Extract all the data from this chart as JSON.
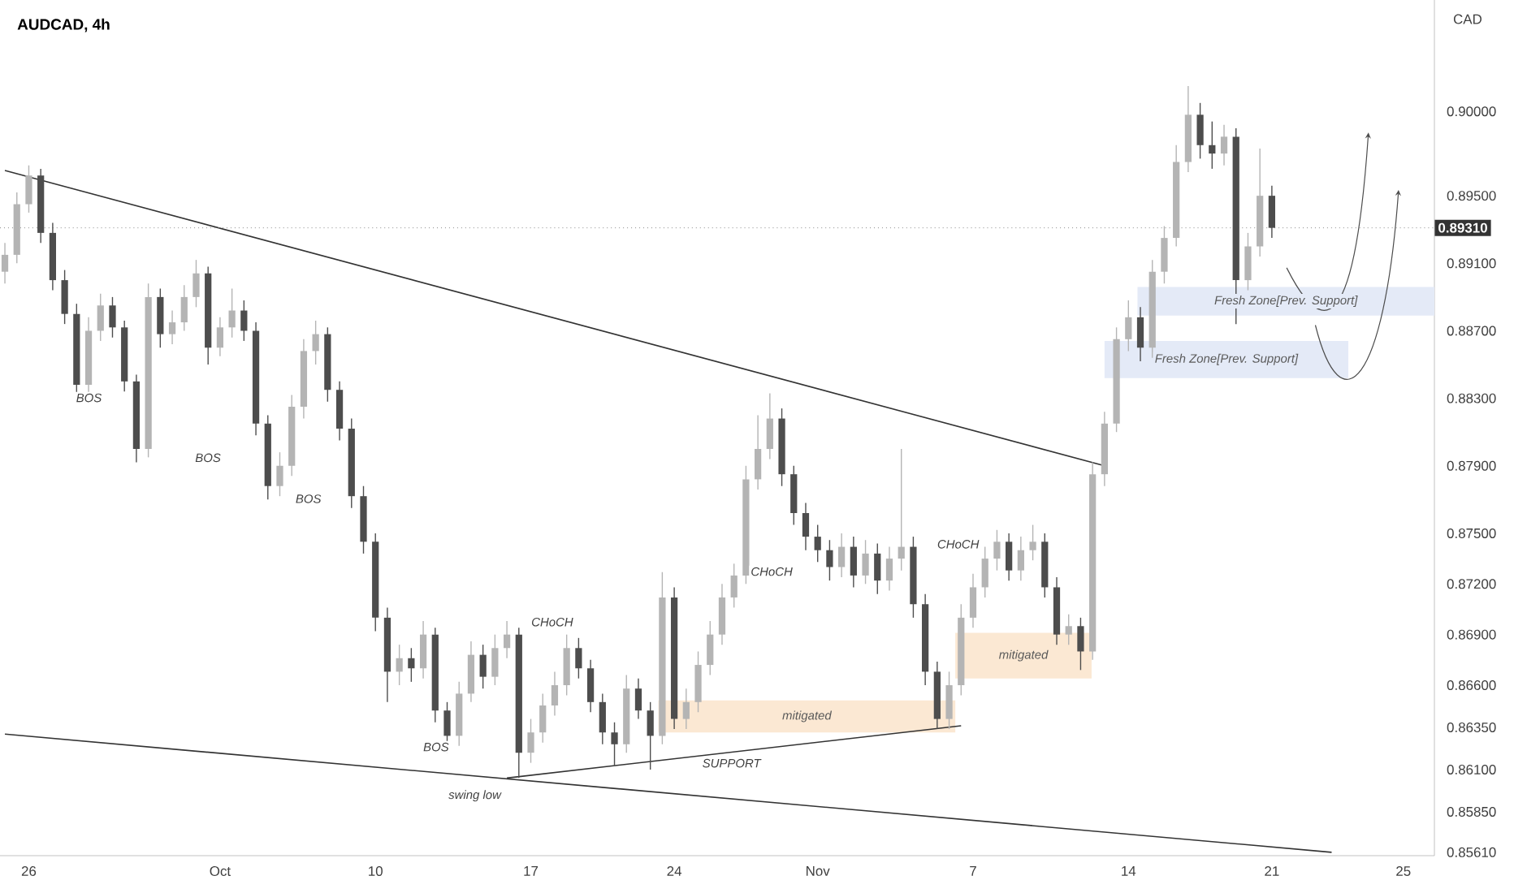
{
  "chart_data": {
    "type": "candlestick",
    "title": "AUDCAD, 4h",
    "ylabel": "CAD",
    "ylim": [
      0.8559,
      0.9066
    ],
    "yticks": [
      {
        "value": 0.9,
        "label": "0.90000"
      },
      {
        "value": 0.895,
        "label": "0.89500"
      },
      {
        "value": 0.891,
        "label": "0.89100"
      },
      {
        "value": 0.887,
        "label": "0.88700"
      },
      {
        "value": 0.883,
        "label": "0.88300"
      },
      {
        "value": 0.879,
        "label": "0.87900"
      },
      {
        "value": 0.875,
        "label": "0.87500"
      },
      {
        "value": 0.872,
        "label": "0.87200"
      },
      {
        "value": 0.869,
        "label": "0.86900"
      },
      {
        "value": 0.866,
        "label": "0.86600"
      },
      {
        "value": 0.8635,
        "label": "0.86350"
      },
      {
        "value": 0.861,
        "label": "0.86100"
      },
      {
        "value": 0.8585,
        "label": "0.85850"
      },
      {
        "value": 0.8561,
        "label": "0.85610"
      }
    ],
    "categories": [
      null,
      null,
      "26",
      null,
      null,
      null,
      null,
      null,
      null,
      null,
      null,
      null,
      null,
      null,
      null,
      null,
      null,
      null,
      "Oct",
      null,
      null,
      null,
      null,
      null,
      null,
      null,
      null,
      null,
      null,
      null,
      null,
      "10",
      null,
      null,
      null,
      null,
      null,
      null,
      null,
      null,
      null,
      null,
      null,
      null,
      "17",
      null,
      null,
      null,
      null,
      null,
      null,
      null,
      null,
      null,
      null,
      null,
      "24",
      null,
      null,
      null,
      null,
      null,
      null,
      null,
      null,
      null,
      null,
      null,
      "Nov",
      null,
      null,
      null,
      null,
      null,
      null,
      null,
      null,
      null,
      null,
      null,
      null,
      "7",
      null,
      null,
      null,
      null,
      null,
      null,
      null,
      null,
      null,
      null,
      null,
      null,
      "14",
      null,
      null,
      null,
      null,
      null,
      null,
      null,
      null,
      null,
      null,
      null,
      "21",
      null,
      null,
      null,
      null,
      null,
      null,
      null,
      null,
      null,
      null,
      "25"
    ],
    "ohlc": [
      [
        0.8905,
        0.8922,
        0.8898,
        0.8915
      ],
      [
        0.8915,
        0.8952,
        0.891,
        0.8945
      ],
      [
        0.8945,
        0.8968,
        0.894,
        0.8962
      ],
      [
        0.8962,
        0.8966,
        0.8922,
        0.8928
      ],
      [
        0.8928,
        0.8934,
        0.8894,
        0.89
      ],
      [
        0.89,
        0.8906,
        0.8874,
        0.888
      ],
      [
        0.888,
        0.8886,
        0.883,
        0.8838
      ],
      [
        0.8838,
        0.8878,
        0.8832,
        0.887
      ],
      [
        0.887,
        0.8892,
        0.8864,
        0.8885
      ],
      [
        0.8885,
        0.889,
        0.8866,
        0.8872
      ],
      [
        0.8872,
        0.8876,
        0.8834,
        0.884
      ],
      [
        0.884,
        0.8844,
        0.8792,
        0.88
      ],
      [
        0.88,
        0.8898,
        0.8795,
        0.889
      ],
      [
        0.889,
        0.8895,
        0.886,
        0.8868
      ],
      [
        0.8868,
        0.8882,
        0.8862,
        0.8875
      ],
      [
        0.8875,
        0.8897,
        0.887,
        0.889
      ],
      [
        0.889,
        0.8912,
        0.8884,
        0.8904
      ],
      [
        0.8904,
        0.8908,
        0.885,
        0.886
      ],
      [
        0.886,
        0.8878,
        0.8855,
        0.8872
      ],
      [
        0.8872,
        0.8895,
        0.8866,
        0.8882
      ],
      [
        0.8882,
        0.8888,
        0.8864,
        0.887
      ],
      [
        0.887,
        0.8875,
        0.8808,
        0.8815
      ],
      [
        0.8815,
        0.882,
        0.877,
        0.8778
      ],
      [
        0.8778,
        0.8798,
        0.8772,
        0.879
      ],
      [
        0.879,
        0.8832,
        0.8784,
        0.8825
      ],
      [
        0.8825,
        0.8865,
        0.8818,
        0.8858
      ],
      [
        0.8858,
        0.8876,
        0.885,
        0.8868
      ],
      [
        0.8868,
        0.8872,
        0.8828,
        0.8835
      ],
      [
        0.8835,
        0.884,
        0.8805,
        0.8812
      ],
      [
        0.8812,
        0.8818,
        0.8765,
        0.8772
      ],
      [
        0.8772,
        0.8778,
        0.8738,
        0.8745
      ],
      [
        0.8745,
        0.875,
        0.8692,
        0.87
      ],
      [
        0.87,
        0.8706,
        0.865,
        0.8668
      ],
      [
        0.8668,
        0.8684,
        0.866,
        0.8676
      ],
      [
        0.8676,
        0.8682,
        0.8662,
        0.867
      ],
      [
        0.867,
        0.8698,
        0.8664,
        0.869
      ],
      [
        0.869,
        0.8694,
        0.8638,
        0.8645
      ],
      [
        0.8645,
        0.865,
        0.862,
        0.863
      ],
      [
        0.863,
        0.8662,
        0.8624,
        0.8655
      ],
      [
        0.8655,
        0.8686,
        0.865,
        0.8678
      ],
      [
        0.8678,
        0.8684,
        0.8658,
        0.8665
      ],
      [
        0.8665,
        0.869,
        0.866,
        0.8682
      ],
      [
        0.8682,
        0.8698,
        0.8676,
        0.869
      ],
      [
        0.869,
        0.8694,
        0.8605,
        0.862
      ],
      [
        0.862,
        0.864,
        0.8614,
        0.8632
      ],
      [
        0.8632,
        0.8655,
        0.8626,
        0.8648
      ],
      [
        0.8648,
        0.8668,
        0.8642,
        0.866
      ],
      [
        0.866,
        0.869,
        0.8654,
        0.8682
      ],
      [
        0.8682,
        0.8688,
        0.8664,
        0.867
      ],
      [
        0.867,
        0.8675,
        0.8644,
        0.865
      ],
      [
        0.865,
        0.8655,
        0.8625,
        0.8632
      ],
      [
        0.8632,
        0.8638,
        0.8612,
        0.8625
      ],
      [
        0.8625,
        0.8666,
        0.862,
        0.8658
      ],
      [
        0.8658,
        0.8664,
        0.864,
        0.8645
      ],
      [
        0.8645,
        0.865,
        0.861,
        0.863
      ],
      [
        0.863,
        0.8727,
        0.8625,
        0.8712
      ],
      [
        0.8712,
        0.8718,
        0.8634,
        0.864
      ],
      [
        0.864,
        0.8658,
        0.8634,
        0.865
      ],
      [
        0.865,
        0.868,
        0.8644,
        0.8672
      ],
      [
        0.8672,
        0.8698,
        0.8666,
        0.869
      ],
      [
        0.869,
        0.872,
        0.8684,
        0.8712
      ],
      [
        0.8712,
        0.8732,
        0.8706,
        0.8725
      ],
      [
        0.8725,
        0.879,
        0.872,
        0.8782
      ],
      [
        0.8782,
        0.882,
        0.8776,
        0.88
      ],
      [
        0.88,
        0.8833,
        0.8794,
        0.8818
      ],
      [
        0.8818,
        0.8824,
        0.8778,
        0.8785
      ],
      [
        0.8785,
        0.879,
        0.8755,
        0.8762
      ],
      [
        0.8762,
        0.8768,
        0.874,
        0.8748
      ],
      [
        0.8748,
        0.8755,
        0.8733,
        0.874
      ],
      [
        0.874,
        0.8746,
        0.8722,
        0.873
      ],
      [
        0.873,
        0.875,
        0.8724,
        0.8742
      ],
      [
        0.8742,
        0.8748,
        0.8718,
        0.8725
      ],
      [
        0.8725,
        0.8746,
        0.872,
        0.8738
      ],
      [
        0.8738,
        0.8744,
        0.8714,
        0.8722
      ],
      [
        0.8722,
        0.8742,
        0.8716,
        0.8735
      ],
      [
        0.8735,
        0.88,
        0.8728,
        0.8742
      ],
      [
        0.8742,
        0.8748,
        0.87,
        0.8708
      ],
      [
        0.8708,
        0.8714,
        0.866,
        0.8668
      ],
      [
        0.8668,
        0.8674,
        0.8634,
        0.864
      ],
      [
        0.864,
        0.8668,
        0.8634,
        0.866
      ],
      [
        0.866,
        0.8708,
        0.8654,
        0.87
      ],
      [
        0.87,
        0.8726,
        0.8694,
        0.8718
      ],
      [
        0.8718,
        0.8742,
        0.8712,
        0.8735
      ],
      [
        0.8735,
        0.8752,
        0.8728,
        0.8745
      ],
      [
        0.8745,
        0.875,
        0.8722,
        0.8728
      ],
      [
        0.8728,
        0.8748,
        0.8722,
        0.874
      ],
      [
        0.874,
        0.8755,
        0.8734,
        0.8745
      ],
      [
        0.8745,
        0.875,
        0.8712,
        0.8718
      ],
      [
        0.8718,
        0.8724,
        0.8684,
        0.869
      ],
      [
        0.869,
        0.8702,
        0.8684,
        0.8695
      ],
      [
        0.8695,
        0.87,
        0.8669,
        0.868
      ],
      [
        0.868,
        0.8792,
        0.8675,
        0.8785
      ],
      [
        0.8785,
        0.8822,
        0.8778,
        0.8815
      ],
      [
        0.8815,
        0.8872,
        0.881,
        0.8865
      ],
      [
        0.8865,
        0.8888,
        0.8858,
        0.8878
      ],
      [
        0.8878,
        0.8884,
        0.8852,
        0.886
      ],
      [
        0.886,
        0.8912,
        0.8854,
        0.8905
      ],
      [
        0.8905,
        0.8932,
        0.8898,
        0.8925
      ],
      [
        0.8925,
        0.898,
        0.892,
        0.897
      ],
      [
        0.897,
        0.9015,
        0.8964,
        0.8998
      ],
      [
        0.8998,
        0.9005,
        0.8972,
        0.898
      ],
      [
        0.898,
        0.8994,
        0.8966,
        0.8975
      ],
      [
        0.8975,
        0.8992,
        0.8968,
        0.8985
      ],
      [
        0.8985,
        0.899,
        0.8874,
        0.89
      ],
      [
        0.89,
        0.8928,
        0.8894,
        0.892
      ],
      [
        0.892,
        0.8978,
        0.8914,
        0.895
      ],
      [
        0.895,
        0.8956,
        0.8925,
        0.8931
      ],
      null,
      null,
      null,
      null,
      null,
      null,
      null,
      null,
      null,
      null,
      null
    ],
    "series": [
      {
        "type": "line",
        "color": "#333333",
        "values": [
          0.8965,
          null,
          null,
          null,
          null,
          null,
          null,
          null,
          null,
          null,
          null,
          null,
          null,
          null,
          null,
          null,
          null,
          null,
          null,
          null,
          null,
          null,
          null,
          null,
          null,
          null,
          null,
          null,
          null,
          null,
          null,
          null,
          null,
          null,
          null,
          null,
          null,
          null,
          null,
          null,
          null,
          null,
          null,
          null,
          null,
          null,
          null,
          null,
          null,
          null,
          null,
          null,
          null,
          null,
          null,
          null,
          null,
          null,
          null,
          null,
          null,
          null,
          null,
          null,
          null,
          null,
          null,
          null,
          null,
          null,
          null,
          null,
          null,
          null,
          null,
          null,
          null,
          null,
          null,
          null,
          null,
          null,
          null,
          null,
          null,
          null,
          null,
          null,
          null,
          null,
          null,
          null,
          0.879,
          null,
          null,
          null,
          null,
          null,
          null,
          null,
          null,
          null,
          null,
          null,
          null,
          null,
          null,
          null,
          null,
          null,
          null,
          null,
          null,
          null,
          null,
          null,
          null,
          null
        ]
      },
      {
        "type": "line",
        "color": "#333333",
        "values": [
          0.8631,
          null,
          null,
          null,
          null,
          null,
          null,
          null,
          null,
          null,
          null,
          null,
          null,
          null,
          null,
          null,
          null,
          null,
          null,
          null,
          null,
          null,
          null,
          null,
          null,
          null,
          null,
          null,
          null,
          null,
          null,
          null,
          null,
          null,
          null,
          null,
          null,
          null,
          null,
          null,
          null,
          null,
          null,
          null,
          null,
          null,
          null,
          null,
          null,
          null,
          null,
          null,
          null,
          null,
          null,
          null,
          null,
          null,
          null,
          null,
          null,
          null,
          null,
          null,
          null,
          null,
          null,
          null,
          null,
          null,
          null,
          null,
          null,
          null,
          null,
          null,
          null,
          null,
          null,
          null,
          null,
          null,
          null,
          null,
          null,
          null,
          null,
          null,
          null,
          null,
          null,
          null,
          null,
          null,
          null,
          null,
          null,
          null,
          null,
          null,
          null,
          null,
          null,
          null,
          null,
          null,
          null,
          null,
          null,
          null,
          null,
          0.8561,
          null,
          null,
          null,
          null,
          null,
          null
        ]
      },
      {
        "type": "line",
        "color": "#333333",
        "values": [
          null,
          null,
          null,
          null,
          null,
          null,
          null,
          null,
          null,
          null,
          null,
          null,
          null,
          null,
          null,
          null,
          null,
          null,
          null,
          null,
          null,
          null,
          null,
          null,
          null,
          null,
          null,
          null,
          null,
          null,
          null,
          null,
          null,
          null,
          null,
          null,
          null,
          null,
          null,
          null,
          null,
          null,
          0.8605,
          null,
          null,
          null,
          null,
          null,
          null,
          null,
          null,
          null,
          null,
          null,
          null,
          null,
          null,
          null,
          null,
          null,
          null,
          null,
          null,
          null,
          null,
          null,
          null,
          null,
          null,
          null,
          null,
          null,
          null,
          null,
          null,
          null,
          null,
          null,
          null,
          null,
          0.8636,
          null,
          null,
          null,
          null,
          null,
          null,
          null,
          null,
          null,
          null,
          null,
          null,
          null,
          null,
          null,
          null,
          null,
          null,
          null,
          null,
          null,
          null,
          null,
          null,
          null,
          null,
          null,
          null,
          null,
          null,
          null,
          null,
          null,
          null,
          null,
          null,
          null
        ]
      }
    ],
    "ref_lines": [
      {
        "axis": "y",
        "value": 0.8931,
        "label": "0.89310",
        "color": "#888888",
        "line_style": "dotted"
      }
    ],
    "bands": [
      {
        "axis": "y",
        "from": 0.8632,
        "to": 0.8651,
        "label": "mitigated",
        "color": "#fbe8d3"
      },
      {
        "axis": "y",
        "from": 0.8664,
        "to": 0.8691,
        "label": "mitigated",
        "color": "#fbe8d3"
      },
      {
        "axis": "y",
        "from": 0.8879,
        "to": 0.8896,
        "label": "Fresh Zone[Prev. Support]",
        "color": "#e4eaf7"
      },
      {
        "axis": "y",
        "from": 0.8842,
        "to": 0.8864,
        "label": "Fresh Zone[Prev. Support]",
        "color": "#e4eaf7"
      }
    ],
    "annotations": [
      "BOS",
      "BOS",
      "BOS",
      "BOS",
      "CHoCH",
      "CHoCH",
      "CHoCH",
      "swing low",
      "SUPPORT"
    ]
  }
}
